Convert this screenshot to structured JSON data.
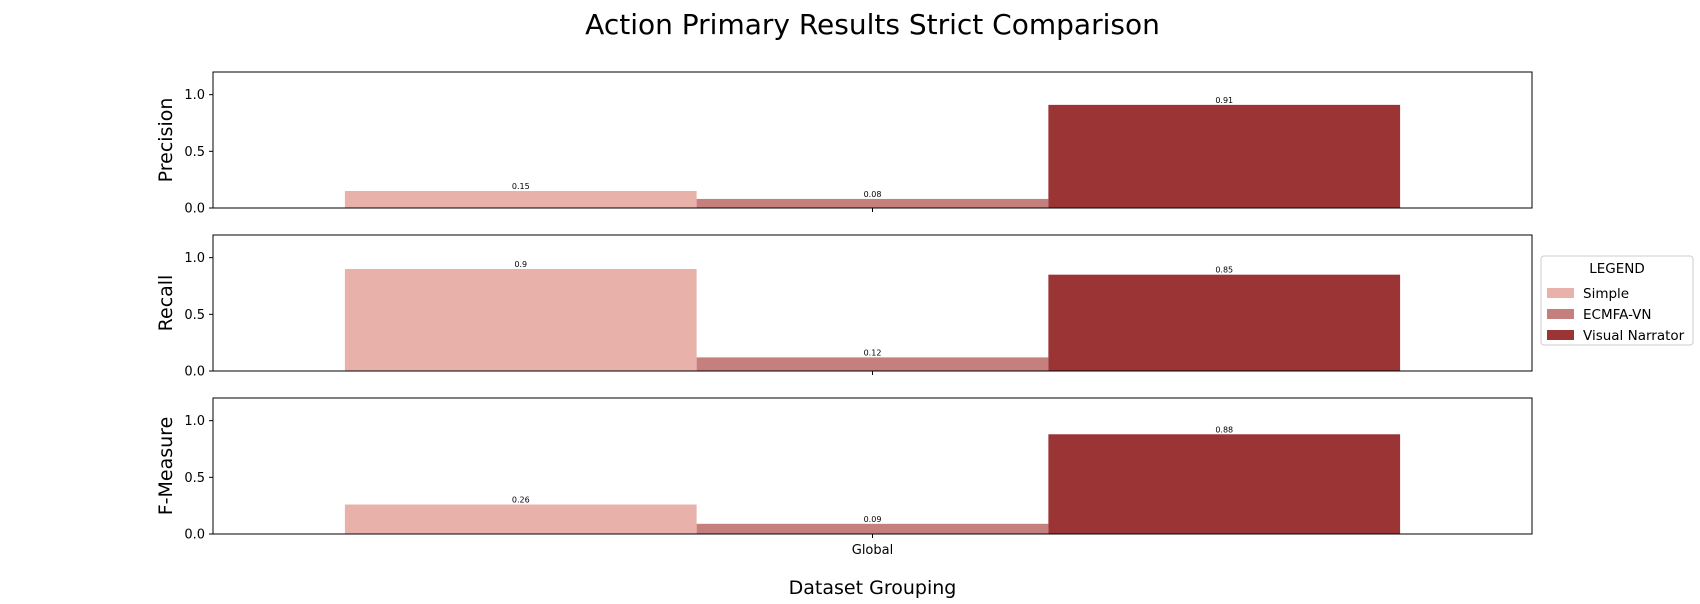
{
  "chart_data": {
    "type": "bar",
    "title": "Action Primary Results Strict Comparison",
    "xlabel": "Dataset Grouping",
    "categories": [
      "Global"
    ],
    "legend": {
      "title": "LEGEND",
      "placement": "right",
      "entries": [
        "Simple",
        "ECMFA-VN",
        "Visual Narrator"
      ]
    },
    "colors": {
      "Simple": "#e8b2aa",
      "ECMFA-VN": "#c57f7d",
      "Visual Narrator": "#9b3535"
    },
    "ylim": [
      0,
      1.2
    ],
    "yticks": [
      "0.0",
      "0.5",
      "1.0"
    ],
    "panels": [
      {
        "ylabel": "Precision",
        "series": [
          {
            "name": "Simple",
            "values": [
              0.15
            ],
            "label": "0.15"
          },
          {
            "name": "ECMFA-VN",
            "values": [
              0.08
            ],
            "label": "0.08"
          },
          {
            "name": "Visual Narrator",
            "values": [
              0.91
            ],
            "label": "0.91"
          }
        ]
      },
      {
        "ylabel": "Recall",
        "series": [
          {
            "name": "Simple",
            "values": [
              0.9
            ],
            "label": "0.9"
          },
          {
            "name": "ECMFA-VN",
            "values": [
              0.12
            ],
            "label": "0.12"
          },
          {
            "name": "Visual Narrator",
            "values": [
              0.85
            ],
            "label": "0.85"
          }
        ]
      },
      {
        "ylabel": "F-Measure",
        "series": [
          {
            "name": "Simple",
            "values": [
              0.26
            ],
            "label": "0.26"
          },
          {
            "name": "ECMFA-VN",
            "values": [
              0.09
            ],
            "label": "0.09"
          },
          {
            "name": "Visual Narrator",
            "values": [
              0.88
            ],
            "label": "0.88"
          }
        ]
      }
    ]
  }
}
